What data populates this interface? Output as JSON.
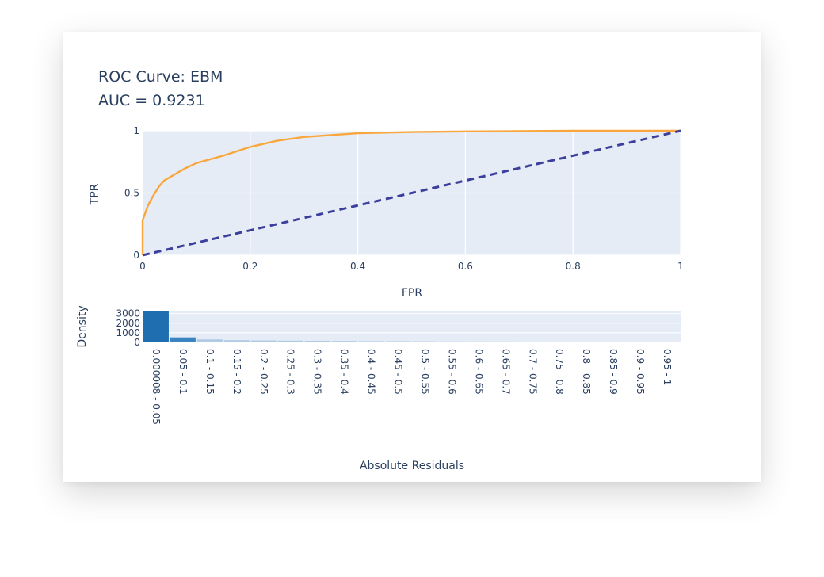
{
  "chart_data": [
    {
      "type": "line",
      "title": "ROC Curve: EBM",
      "subtitle": "AUC = 0.9231",
      "xlabel": "FPR",
      "ylabel": "TPR",
      "xlim": [
        0,
        1
      ],
      "ylim": [
        0,
        1
      ],
      "x_ticks": [
        "0",
        "0.2",
        "0.4",
        "0.6",
        "0.8",
        "1"
      ],
      "x_tick_values": [
        0,
        0.2,
        0.4,
        0.6,
        0.8,
        1
      ],
      "y_ticks": [
        "0",
        "0.5",
        "1"
      ],
      "y_tick_values": [
        0,
        0.5,
        1
      ],
      "grid": true,
      "series": [
        {
          "x": [
            0,
            0,
            0.005,
            0.01,
            0.02,
            0.03,
            0.04,
            0.06,
            0.08,
            0.1,
            0.15,
            0.2,
            0.25,
            0.3,
            0.4,
            0.5,
            0.6,
            0.8,
            1
          ],
          "y": [
            0,
            0.28,
            0.34,
            0.4,
            0.48,
            0.55,
            0.6,
            0.65,
            0.7,
            0.74,
            0.8,
            0.87,
            0.92,
            0.95,
            0.98,
            0.99,
            0.995,
            1,
            1
          ],
          "color": "#f9a73c",
          "style": "solid"
        },
        {
          "x": [
            0,
            1
          ],
          "y": [
            0,
            1
          ],
          "color": "#3c3e9c",
          "style": "dashed"
        }
      ]
    },
    {
      "type": "bar",
      "xlabel": "Absolute Residuals",
      "ylabel": "Density",
      "ylim": [
        0,
        3300
      ],
      "y_ticks": [
        "0",
        "1000",
        "2000",
        "3000"
      ],
      "y_tick_values": [
        0,
        1000,
        2000,
        3000
      ],
      "categories": [
        "0.000008 - 0.05",
        "0.05 - 0.1",
        "0.1 - 0.15",
        "0.15 - 0.2",
        "0.2 - 0.25",
        "0.25 - 0.3",
        "0.3 - 0.35",
        "0.35 - 0.4",
        "0.4 - 0.45",
        "0.45 - 0.5",
        "0.5 - 0.55",
        "0.55 - 0.6",
        "0.6 - 0.65",
        "0.65 - 0.7",
        "0.7 - 0.75",
        "0.75 - 0.8",
        "0.8 - 0.85",
        "0.85 - 0.9",
        "0.9 - 0.95",
        "0.95 - 1"
      ],
      "values": [
        3250,
        520,
        310,
        230,
        200,
        180,
        160,
        150,
        130,
        120,
        110,
        100,
        95,
        90,
        85,
        80,
        70,
        0,
        0,
        0
      ],
      "colors": {
        "first": "#1f6fb0",
        "second": "#3b84c2",
        "rest": "#aec9e4"
      }
    }
  ]
}
